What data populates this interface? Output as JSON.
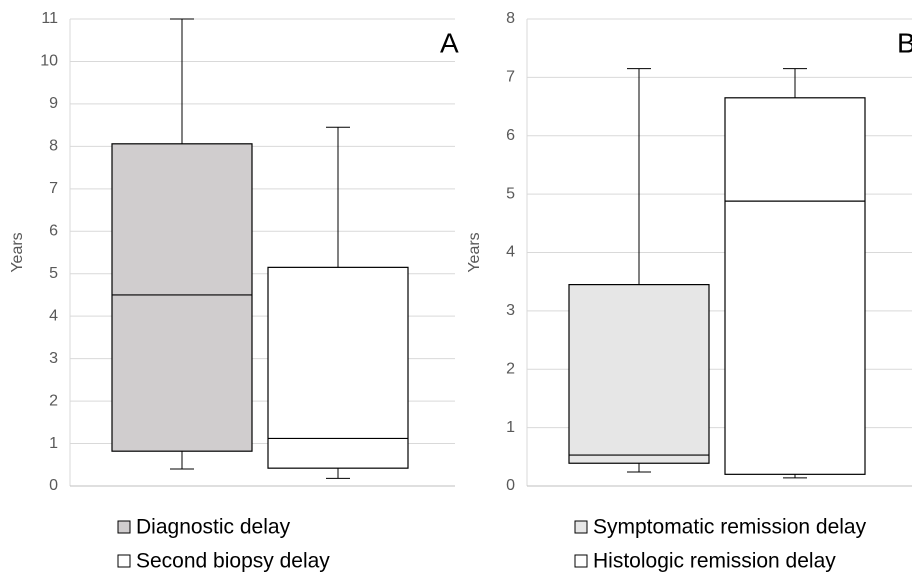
{
  "chart_data": [
    {
      "type": "box",
      "ylabel": "Years",
      "annotation": "A",
      "ylim": [
        0,
        11
      ],
      "yticks": [
        0,
        1,
        2,
        3,
        4,
        5,
        6,
        7,
        8,
        9,
        10,
        11
      ],
      "grid": true,
      "series": [
        {
          "name": "Diagnostic delay",
          "color": "#d0cdce",
          "min": 0.4,
          "q1": 0.82,
          "median": 4.5,
          "q3": 8.06,
          "max": 11
        },
        {
          "name": "Second biopsy delay",
          "color": "#ffffff",
          "min": 0.18,
          "q1": 0.42,
          "median": 1.12,
          "q3": 5.15,
          "max": 8.45
        }
      ]
    },
    {
      "type": "box",
      "ylabel": "Years",
      "annotation": "B",
      "ylim": [
        0,
        8
      ],
      "yticks": [
        0,
        1,
        2,
        3,
        4,
        5,
        6,
        7,
        8
      ],
      "grid": true,
      "series": [
        {
          "name": "Symptomatic remission delay",
          "color": "#e6e6e6",
          "min": 0.24,
          "q1": 0.39,
          "median": 0.53,
          "q3": 3.45,
          "max": 7.15
        },
        {
          "name": "Histologic remission delay",
          "color": "#ffffff",
          "min": 0.14,
          "q1": 0.2,
          "median": 4.88,
          "q3": 6.65,
          "max": 7.15
        }
      ]
    }
  ]
}
